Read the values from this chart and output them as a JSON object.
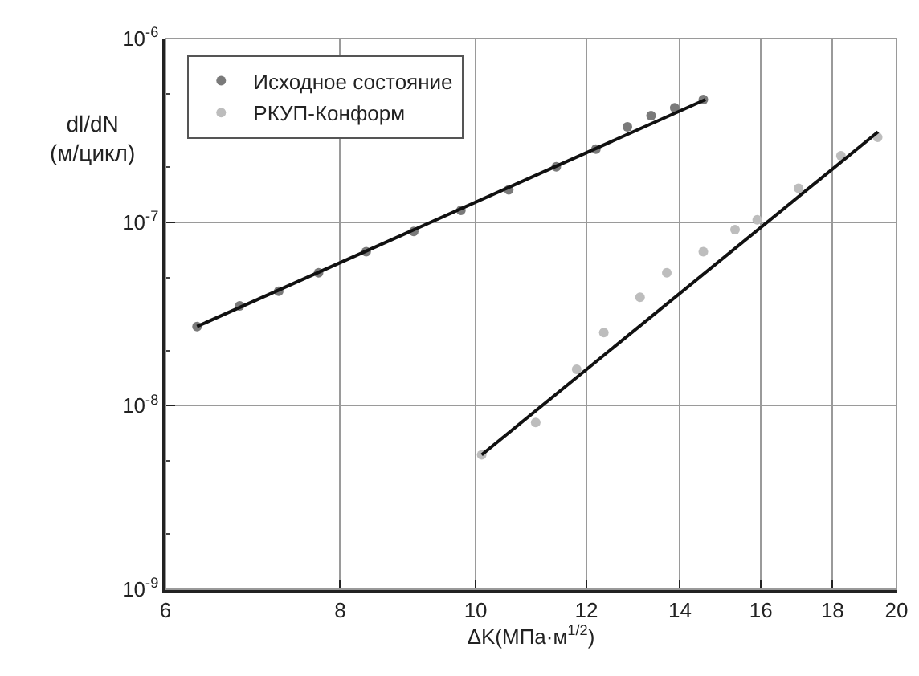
{
  "chart_data": {
    "type": "scatter",
    "xlabel": "ΔK(МПа·м$^{1/2}$)",
    "ylabel": "dl/dN\n(м/цикл)",
    "log": "xy",
    "grid": true,
    "legend": "top left",
    "xlim": [
      6,
      20
    ],
    "xticks": [
      6,
      8,
      10,
      12,
      14,
      16,
      18,
      20
    ],
    "ylim": [
      1e-09,
      1e-06
    ],
    "yticks": [
      {
        "value": 1e-09,
        "label": "10$^{-9}$"
      },
      {
        "value": 1e-08,
        "label": "10$^{-8}$"
      },
      {
        "value": 1e-07,
        "label": "10$^{-7}$"
      },
      {
        "value": 1e-06,
        "label": "10$^{-6}$"
      }
    ],
    "series": [
      {
        "name": "Исходное состояние",
        "color": "#7a7a7a",
        "marker": "circle",
        "x": [
          6.32,
          6.78,
          7.23,
          7.72,
          8.35,
          9.03,
          9.76,
          10.56,
          11.42,
          12.19,
          12.84,
          13.35,
          13.88,
          14.55
        ],
        "values": [
          2.7e-08,
          3.5e-08,
          4.2e-08,
          5.3e-08,
          6.9e-08,
          8.9e-08,
          1.16e-07,
          1.5e-07,
          2e-07,
          2.5e-07,
          3.3e-07,
          3.8e-07,
          4.2e-07,
          4.65e-07
        ]
      },
      {
        "name": "РКУП-Конформ",
        "color": "#bdbdbd",
        "marker": "circle",
        "x": [
          10.1,
          11.04,
          11.81,
          12.35,
          13.11,
          13.7,
          14.55,
          15.33,
          15.9,
          17.02,
          18.25,
          19.39
        ],
        "values": [
          5.4e-09,
          8.1e-09,
          1.58e-08,
          2.5e-08,
          3.9e-08,
          5.3e-08,
          6.9e-08,
          9.1e-08,
          1.03e-07,
          1.53e-07,
          2.3e-07,
          2.9e-07
        ]
      },
      {
        "type": "line",
        "marker": "none",
        "color": "#111111",
        "x": [
          6.32,
          14.6
        ],
        "values": [
          2.7e-08,
          4.65e-07
        ]
      },
      {
        "type": "line",
        "marker": "none",
        "color": "#111111",
        "x": [
          10.1,
          19.4
        ],
        "values": [
          5.4e-09,
          3.1e-07
        ]
      }
    ]
  }
}
